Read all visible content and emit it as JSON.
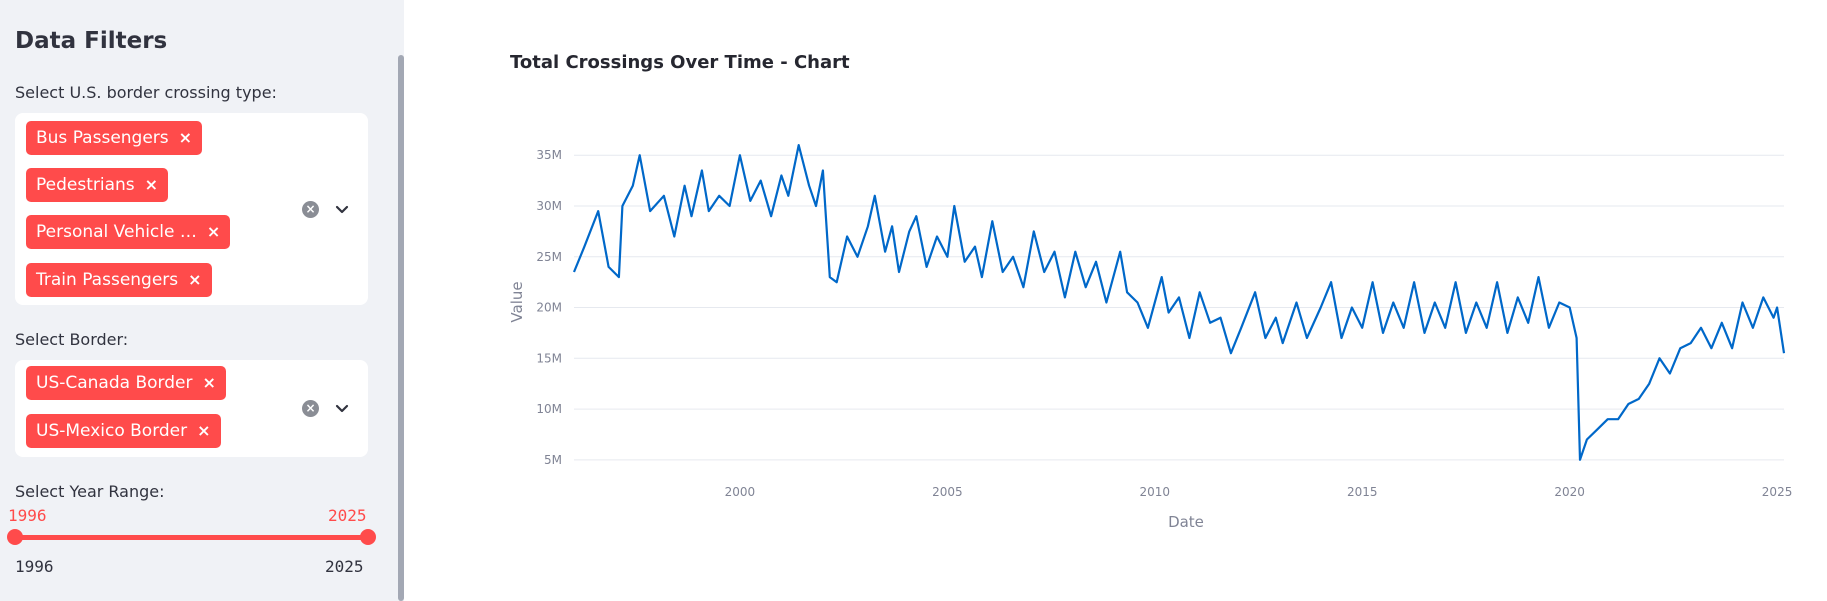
{
  "sidebar": {
    "title": "Data Filters",
    "crossing_type": {
      "label": "Select U.S. border crossing type:",
      "tags": [
        "Bus Passengers",
        "Pedestrians",
        "Personal Vehicle …",
        "Train Passengers"
      ],
      "tag_remove": "×"
    },
    "border": {
      "label": "Select Border:",
      "tags": [
        "US-Canada Border",
        "US-Mexico Border"
      ],
      "tag_remove": "×"
    },
    "year_range": {
      "label": "Select Year Range:",
      "low_value": "1996",
      "high_value": "2025",
      "min": "1996",
      "max": "2025"
    }
  },
  "main": {
    "chart_title": "Total Crossings Over Time - Chart"
  },
  "colors": {
    "accent": "#ff4b4b",
    "line": "#0068c9",
    "sidebar_bg": "#f0f2f6"
  },
  "chart_data": {
    "type": "line",
    "title": "Total Crossings Over Time - Chart",
    "xlabel": "Date",
    "ylabel": "Value",
    "x_ticks": [
      "2000",
      "2005",
      "2010",
      "2015",
      "2020",
      "2025"
    ],
    "y_ticks": [
      "5M",
      "10M",
      "15M",
      "20M",
      "25M",
      "30M",
      "35M"
    ],
    "xlim": [
      "1996-01",
      "2025-03"
    ],
    "ylim": [
      4000000,
      36500000
    ],
    "grid": true,
    "legend": "none",
    "series": [
      {
        "values": [
          [
            "1996-01",
            23500000
          ],
          [
            "1996-04",
            26000000
          ],
          [
            "1996-08",
            29500000
          ],
          [
            "1996-11",
            24000000
          ],
          [
            "1997-02",
            23000000
          ],
          [
            "1997-03",
            30000000
          ],
          [
            "1997-06",
            32000000
          ],
          [
            "1997-08",
            35000000
          ],
          [
            "1997-11",
            29500000
          ],
          [
            "1998-03",
            31000000
          ],
          [
            "1998-06",
            27000000
          ],
          [
            "1998-09",
            32000000
          ],
          [
            "1998-11",
            29000000
          ],
          [
            "1999-02",
            33500000
          ],
          [
            "1999-04",
            29500000
          ],
          [
            "1999-07",
            31000000
          ],
          [
            "1999-10",
            30000000
          ],
          [
            "2000-01",
            35000000
          ],
          [
            "2000-04",
            30500000
          ],
          [
            "2000-07",
            32500000
          ],
          [
            "2000-10",
            29000000
          ],
          [
            "2001-01",
            33000000
          ],
          [
            "2001-03",
            31000000
          ],
          [
            "2001-06",
            36000000
          ],
          [
            "2001-09",
            32000000
          ],
          [
            "2001-11",
            30000000
          ],
          [
            "2002-01",
            33500000
          ],
          [
            "2002-03",
            23000000
          ],
          [
            "2002-05",
            22500000
          ],
          [
            "2002-08",
            27000000
          ],
          [
            "2002-11",
            25000000
          ],
          [
            "2003-02",
            28000000
          ],
          [
            "2003-04",
            31000000
          ],
          [
            "2003-07",
            25500000
          ],
          [
            "2003-09",
            28000000
          ],
          [
            "2003-11",
            23500000
          ],
          [
            "2004-02",
            27500000
          ],
          [
            "2004-04",
            29000000
          ],
          [
            "2004-07",
            24000000
          ],
          [
            "2004-10",
            27000000
          ],
          [
            "2005-01",
            25000000
          ],
          [
            "2005-03",
            30000000
          ],
          [
            "2005-06",
            24500000
          ],
          [
            "2005-09",
            26000000
          ],
          [
            "2005-11",
            23000000
          ],
          [
            "2006-02",
            28500000
          ],
          [
            "2006-05",
            23500000
          ],
          [
            "2006-08",
            25000000
          ],
          [
            "2006-11",
            22000000
          ],
          [
            "2007-02",
            27500000
          ],
          [
            "2007-05",
            23500000
          ],
          [
            "2007-08",
            25500000
          ],
          [
            "2007-11",
            21000000
          ],
          [
            "2008-02",
            25500000
          ],
          [
            "2008-05",
            22000000
          ],
          [
            "2008-08",
            24500000
          ],
          [
            "2008-11",
            20500000
          ],
          [
            "2009-03",
            25500000
          ],
          [
            "2009-05",
            21500000
          ],
          [
            "2009-08",
            20500000
          ],
          [
            "2009-11",
            18000000
          ],
          [
            "2010-03",
            23000000
          ],
          [
            "2010-05",
            19500000
          ],
          [
            "2010-08",
            21000000
          ],
          [
            "2010-11",
            17000000
          ],
          [
            "2011-02",
            21500000
          ],
          [
            "2011-05",
            18500000
          ],
          [
            "2011-08",
            19000000
          ],
          [
            "2011-11",
            15500000
          ],
          [
            "2012-02",
            18000000
          ],
          [
            "2012-06",
            21500000
          ],
          [
            "2012-09",
            17000000
          ],
          [
            "2012-12",
            19000000
          ],
          [
            "2013-02",
            16500000
          ],
          [
            "2013-06",
            20500000
          ],
          [
            "2013-09",
            17000000
          ],
          [
            "2014-01",
            20000000
          ],
          [
            "2014-04",
            22500000
          ],
          [
            "2014-07",
            17000000
          ],
          [
            "2014-10",
            20000000
          ],
          [
            "2015-01",
            18000000
          ],
          [
            "2015-04",
            22500000
          ],
          [
            "2015-07",
            17500000
          ],
          [
            "2015-10",
            20500000
          ],
          [
            "2016-01",
            18000000
          ],
          [
            "2016-04",
            22500000
          ],
          [
            "2016-07",
            17500000
          ],
          [
            "2016-10",
            20500000
          ],
          [
            "2017-01",
            18000000
          ],
          [
            "2017-04",
            22500000
          ],
          [
            "2017-07",
            17500000
          ],
          [
            "2017-10",
            20500000
          ],
          [
            "2018-01",
            18000000
          ],
          [
            "2018-04",
            22500000
          ],
          [
            "2018-07",
            17500000
          ],
          [
            "2018-10",
            21000000
          ],
          [
            "2019-01",
            18500000
          ],
          [
            "2019-04",
            23000000
          ],
          [
            "2019-07",
            18000000
          ],
          [
            "2019-10",
            20500000
          ],
          [
            "2020-01",
            20000000
          ],
          [
            "2020-03",
            17000000
          ],
          [
            "2020-04",
            5000000
          ],
          [
            "2020-06",
            7000000
          ],
          [
            "2020-09",
            8000000
          ],
          [
            "2020-12",
            9000000
          ],
          [
            "2021-03",
            9000000
          ],
          [
            "2021-06",
            10500000
          ],
          [
            "2021-09",
            11000000
          ],
          [
            "2021-12",
            12500000
          ],
          [
            "2022-03",
            15000000
          ],
          [
            "2022-06",
            13500000
          ],
          [
            "2022-09",
            16000000
          ],
          [
            "2022-12",
            16500000
          ],
          [
            "2023-03",
            18000000
          ],
          [
            "2023-06",
            16000000
          ],
          [
            "2023-09",
            18500000
          ],
          [
            "2023-12",
            16000000
          ],
          [
            "2024-03",
            20500000
          ],
          [
            "2024-06",
            18000000
          ],
          [
            "2024-09",
            21000000
          ],
          [
            "2024-12",
            19000000
          ],
          [
            "2025-01",
            20000000
          ],
          [
            "2025-03",
            15500000
          ]
        ]
      }
    ]
  }
}
